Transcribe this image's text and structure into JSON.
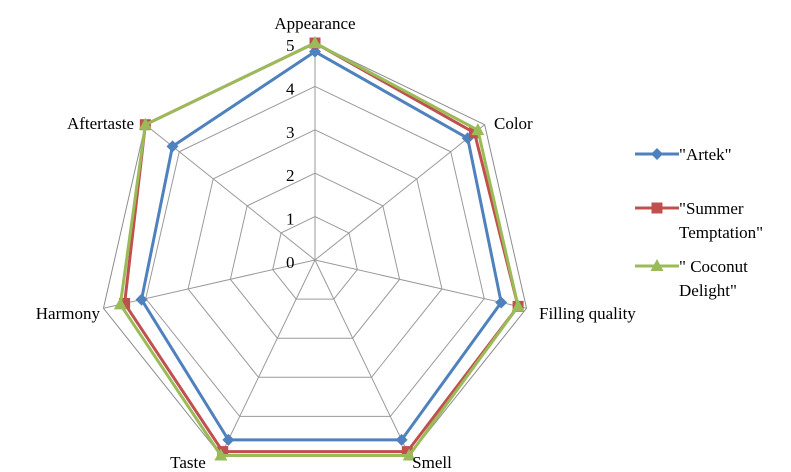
{
  "chart_data": {
    "type": "radar",
    "categories": [
      "Appearance",
      "Color",
      "Filling quality",
      "Smell",
      "Taste",
      "Harmony",
      "Aftertaste"
    ],
    "rlim": [
      0,
      5
    ],
    "ticks": [
      "0",
      "1",
      "2",
      "3",
      "4",
      "5"
    ],
    "grid": true,
    "legend_position": "right",
    "series": [
      {
        "name": "\"Artek\"",
        "values": [
          4.8,
          4.5,
          4.4,
          4.6,
          4.6,
          4.1,
          4.2
        ],
        "color": "#4F81BD",
        "marker": "diamond"
      },
      {
        "name": "\"Summer Temptation\"",
        "values": [
          5.0,
          4.7,
          4.8,
          4.9,
          4.9,
          4.5,
          5.0
        ],
        "color": "#C0504D",
        "marker": "square"
      },
      {
        "name": "\" Coconut Delight\"",
        "values": [
          5.0,
          4.8,
          4.8,
          5.0,
          5.0,
          4.6,
          5.0
        ],
        "color": "#9BBB59",
        "marker": "triangle"
      }
    ]
  },
  "legend": {
    "items": [
      {
        "lines": [
          "\"Artek\""
        ]
      },
      {
        "lines": [
          "\"Summer",
          "Temptation\""
        ]
      },
      {
        "lines": [
          "\" Coconut",
          "Delight\""
        ]
      }
    ]
  }
}
